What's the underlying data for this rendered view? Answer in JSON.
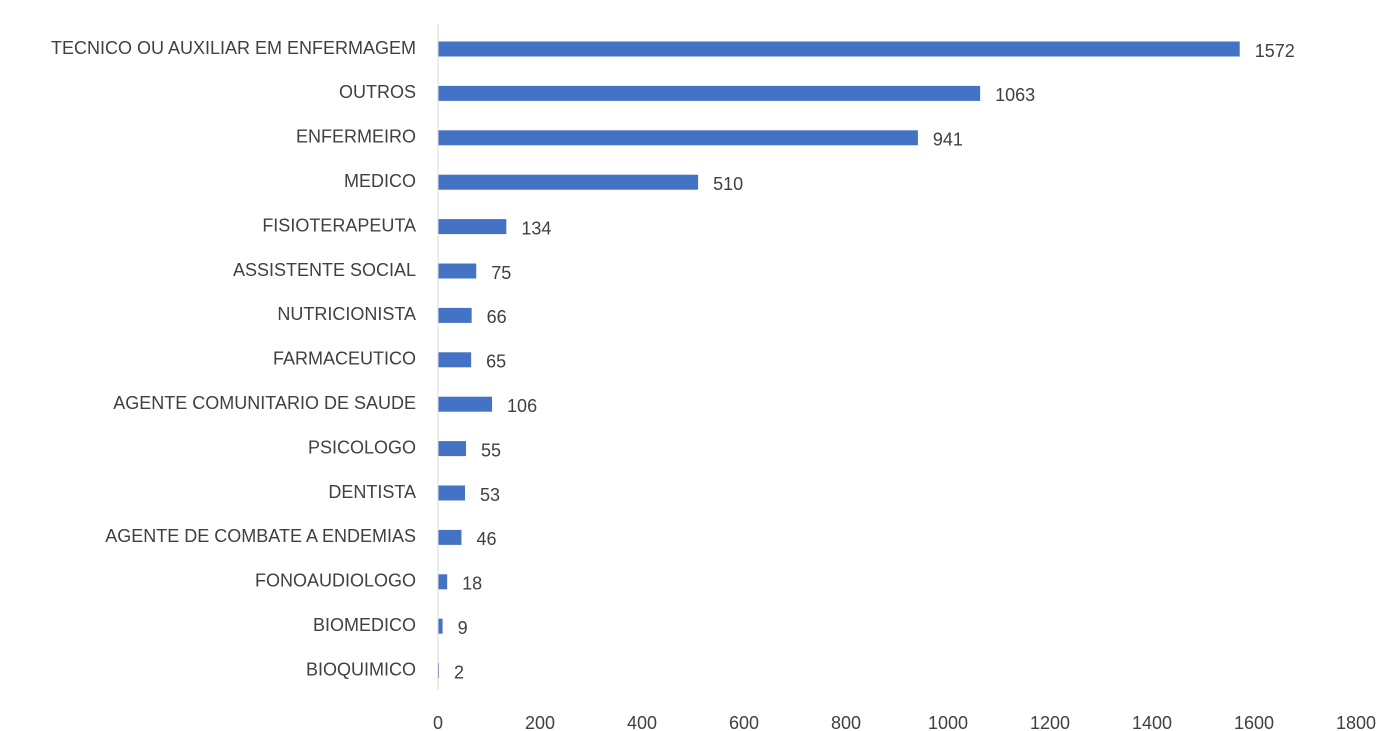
{
  "chart_data": {
    "type": "bar",
    "orientation": "horizontal",
    "title": "",
    "xlabel": "",
    "ylabel": "",
    "categories": [
      "TECNICO OU AUXILIAR EM ENFERMAGEM",
      "OUTROS",
      "ENFERMEIRO",
      "MEDICO",
      "FISIOTERAPEUTA",
      "ASSISTENTE SOCIAL",
      "NUTRICIONISTA",
      "FARMACEUTICO",
      "AGENTE COMUNITARIO DE SAUDE",
      "PSICOLOGO",
      "DENTISTA",
      "AGENTE DE COMBATE A ENDEMIAS",
      "FONOAUDIOLOGO",
      "BIOMEDICO",
      "BIOQUIMICO"
    ],
    "values": [
      1572,
      1063,
      941,
      510,
      134,
      75,
      66,
      65,
      106,
      55,
      53,
      46,
      18,
      9,
      2
    ],
    "xlim": [
      0,
      1800
    ],
    "xticks": [
      0,
      200,
      400,
      600,
      800,
      1000,
      1200,
      1400,
      1600,
      1800
    ],
    "data_labels": true,
    "grid": false,
    "legend": "none",
    "bar_color": "#4472c4",
    "text_color": "#404040",
    "axis_color": "#d9d9d9"
  }
}
